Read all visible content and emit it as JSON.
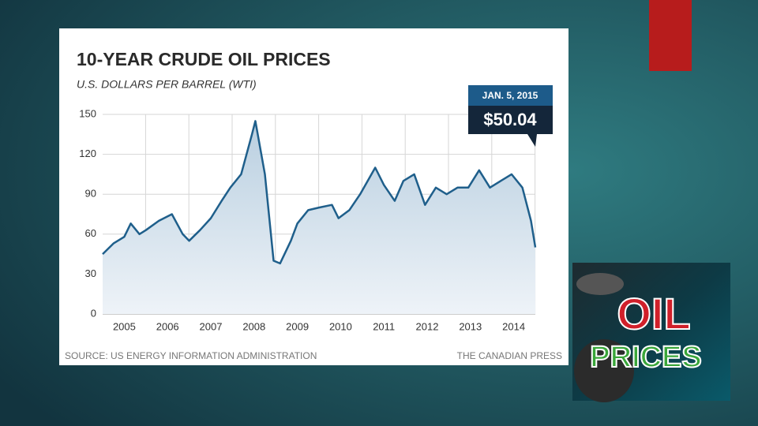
{
  "chart_data": {
    "type": "line",
    "title": "10-YEAR CRUDE OIL PRICES",
    "subtitle": "U.S. DOLLARS PER BARREL (WTI)",
    "x": [
      2005.0,
      2005.25,
      2005.5,
      2005.65,
      2005.85,
      2006.0,
      2006.3,
      2006.6,
      2006.85,
      2007.0,
      2007.25,
      2007.5,
      2007.75,
      2007.95,
      2008.2,
      2008.45,
      2008.53,
      2008.75,
      2008.95,
      2009.1,
      2009.35,
      2009.5,
      2009.75,
      2010.0,
      2010.3,
      2010.45,
      2010.7,
      2010.95,
      2011.3,
      2011.5,
      2011.75,
      2011.95,
      2012.2,
      2012.45,
      2012.7,
      2012.95,
      2013.2,
      2013.45,
      2013.7,
      2013.95,
      2014.2,
      2014.45,
      2014.7,
      2014.9,
      2015.0
    ],
    "series": [
      {
        "name": "WTI",
        "color": "#1f5f8b",
        "values": [
          45,
          53,
          58,
          68,
          60,
          63,
          70,
          75,
          60,
          55,
          63,
          72,
          85,
          95,
          105,
          135,
          145,
          105,
          40,
          38,
          55,
          68,
          78,
          80,
          82,
          72,
          78,
          90,
          110,
          97,
          85,
          100,
          105,
          82,
          95,
          90,
          95,
          95,
          108,
          95,
          100,
          105,
          95,
          70,
          50.04
        ]
      }
    ],
    "xlim": [
      2005,
      2015
    ],
    "xticks": [
      {
        "value": 2005.5,
        "label": "2005"
      },
      {
        "value": 2006.5,
        "label": "2006"
      },
      {
        "value": 2007.5,
        "label": "2007"
      },
      {
        "value": 2008.5,
        "label": "2008"
      },
      {
        "value": 2009.5,
        "label": "2009"
      },
      {
        "value": 2010.5,
        "label": "2010"
      },
      {
        "value": 2011.5,
        "label": "2011"
      },
      {
        "value": 2012.5,
        "label": "2012"
      },
      {
        "value": 2013.5,
        "label": "2013"
      },
      {
        "value": 2014.5,
        "label": "2014"
      }
    ],
    "ylim": [
      0,
      150
    ],
    "yticks": [
      0,
      30,
      60,
      90,
      120,
      150
    ],
    "grid": true,
    "annotation": {
      "date": "JAN. 5, 2015",
      "price": "$50.04"
    },
    "source": "SOURCE: US ENERGY INFORMATION ADMINISTRATION",
    "credit": "THE CANADIAN PRESS"
  },
  "image": {
    "line1": "OIL",
    "line2": "PRICES"
  }
}
